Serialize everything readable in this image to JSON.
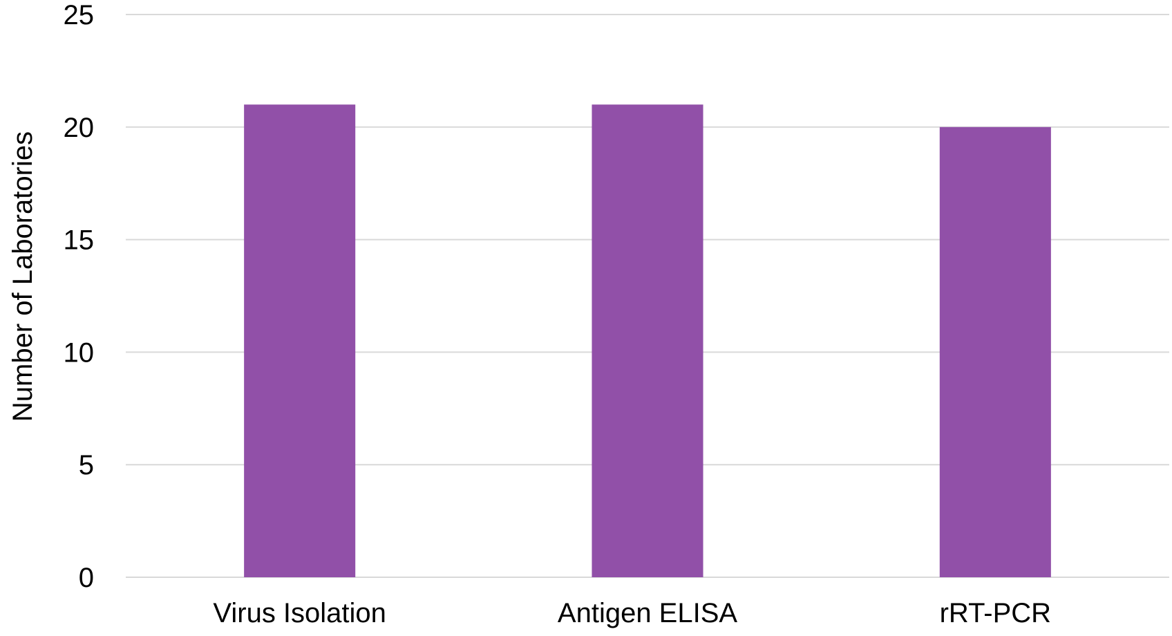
{
  "chart_data": {
    "type": "bar",
    "title": "",
    "xlabel": "",
    "ylabel": "Number of Laboratories",
    "categories": [
      "Virus Isolation",
      "Antigen ELISA",
      "rRT-PCR"
    ],
    "values": [
      21,
      21,
      20
    ],
    "ylim": [
      0,
      25
    ],
    "yticks": [
      "0",
      "5",
      "10",
      "15",
      "20",
      "25"
    ],
    "grid": true,
    "legend": "none",
    "bar_color": "#9150a8",
    "grid_color": "#d9d9d9"
  }
}
